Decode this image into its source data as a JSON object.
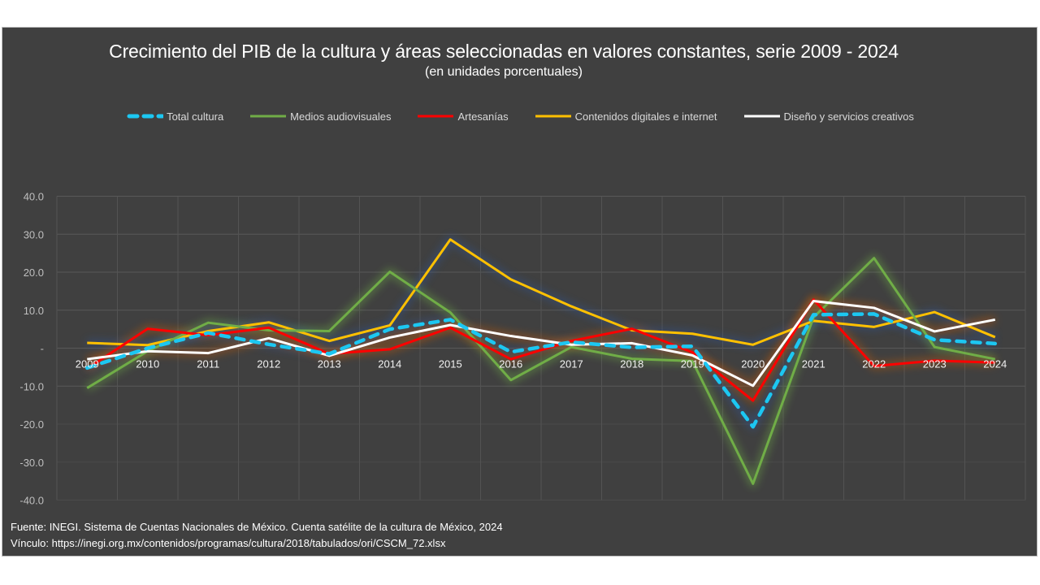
{
  "chart_data": {
    "type": "line",
    "title": "Crecimiento del PIB de la cultura y áreas seleccionadas en valores constantes, serie 2009 - 2024",
    "subtitle": "(en unidades porcentuales)",
    "xlabel": "",
    "ylabel": "",
    "ylim": [
      -40,
      40
    ],
    "yticks": [
      40,
      30,
      20,
      10,
      0,
      -10,
      -20,
      -30,
      -40
    ],
    "ytick_labels": [
      "40.0",
      "30.0",
      "20.0",
      "10.0",
      "-",
      "-10.0",
      "-20.0",
      "-30.0",
      "-40.0"
    ],
    "grid": true,
    "legend_position": "top",
    "categories": [
      "2009",
      "2010",
      "2011",
      "2012",
      "2013",
      "2014",
      "2015",
      "2016",
      "2017",
      "2018",
      "2019",
      "2020",
      "2021",
      "2022",
      "2023",
      "2024"
    ],
    "series": [
      {
        "name": "Total cultura",
        "color": "#1CC7F2",
        "dashed": true,
        "values": [
          -5.2,
          0.0,
          4.0,
          1.0,
          -1.5,
          5.0,
          7.5,
          -1.0,
          1.6,
          0.2,
          0.5,
          -20.7,
          8.8,
          9.0,
          2.2,
          1.2
        ]
      },
      {
        "name": "Medios audiovisuales",
        "color": "#70AD47",
        "dashed": false,
        "values": [
          -10.5,
          -0.8,
          6.7,
          4.7,
          4.5,
          20.1,
          9.4,
          -8.4,
          0.3,
          -2.8,
          -3.4,
          -35.7,
          8.1,
          23.7,
          0.3,
          -2.9
        ]
      },
      {
        "name": "Artesanías",
        "color": "#FF0000",
        "dashed": false,
        "values": [
          -5.4,
          5.1,
          3.4,
          5.4,
          -1.5,
          -0.3,
          5.4,
          -2.9,
          1.9,
          5.1,
          -1.1,
          -13.8,
          12.8,
          -4.7,
          -3.3,
          -3.8
        ]
      },
      {
        "name": "Contenidos digitales e internet",
        "color": "#FFC000",
        "dashed": false,
        "values": [
          1.4,
          0.8,
          4.5,
          6.8,
          1.9,
          6.0,
          28.6,
          18.1,
          11.0,
          4.7,
          3.8,
          0.9,
          7.2,
          5.6,
          9.5,
          2.9
        ]
      },
      {
        "name": "Diseño y servicios creativos",
        "color": "#FFFFFF",
        "dashed": false,
        "values": [
          -2.9,
          -0.8,
          -1.3,
          2.6,
          -2.0,
          2.8,
          6.1,
          3.2,
          0.9,
          1.3,
          -1.9,
          -9.9,
          12.4,
          10.6,
          4.4,
          7.5
        ]
      }
    ]
  },
  "footer": {
    "source": "Fuente: INEGI. Sistema de Cuentas Nacionales de México. Cuenta satélite de la cultura de México, 2024",
    "link": "Vínculo: https://inegi.org.mx/contenidos/programas/cultura/2018/tabulados/ori/CSCM_72.xlsx"
  },
  "colors": {
    "background": "#404040",
    "grid": "#595959",
    "axis_text": "#bfbfbf"
  }
}
